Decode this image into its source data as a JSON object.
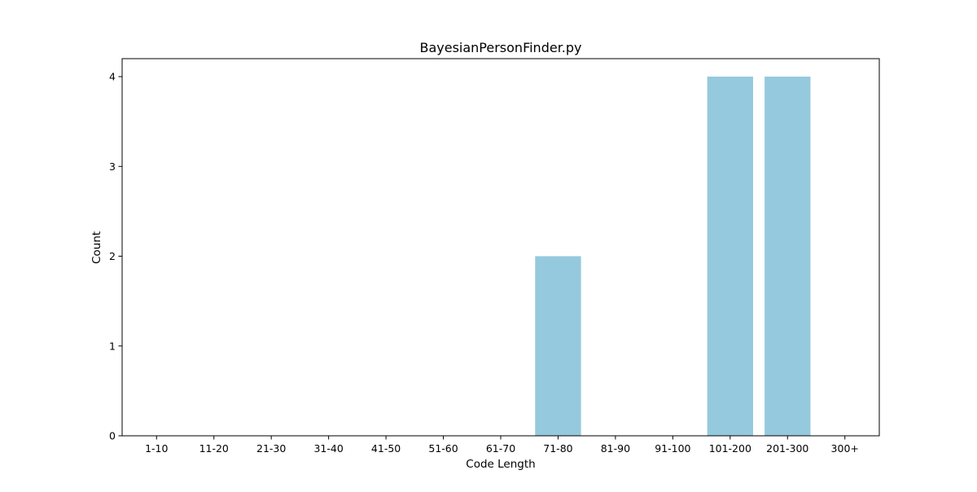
{
  "chart_data": {
    "type": "bar",
    "title": "BayesianPersonFinder.py",
    "xlabel": "Code Length",
    "ylabel": "Count",
    "categories": [
      "1-10",
      "11-20",
      "21-30",
      "31-40",
      "41-50",
      "51-60",
      "61-70",
      "71-80",
      "81-90",
      "91-100",
      "101-200",
      "201-300",
      "300+"
    ],
    "values": [
      0,
      0,
      0,
      0,
      0,
      0,
      0,
      2,
      0,
      0,
      4,
      4,
      0
    ],
    "ylim": [
      0,
      4.2
    ],
    "yticks": [
      "0",
      "1",
      "2",
      "3",
      "4"
    ],
    "bar_color": "#95c9dd",
    "grid": false,
    "legend": "none"
  }
}
